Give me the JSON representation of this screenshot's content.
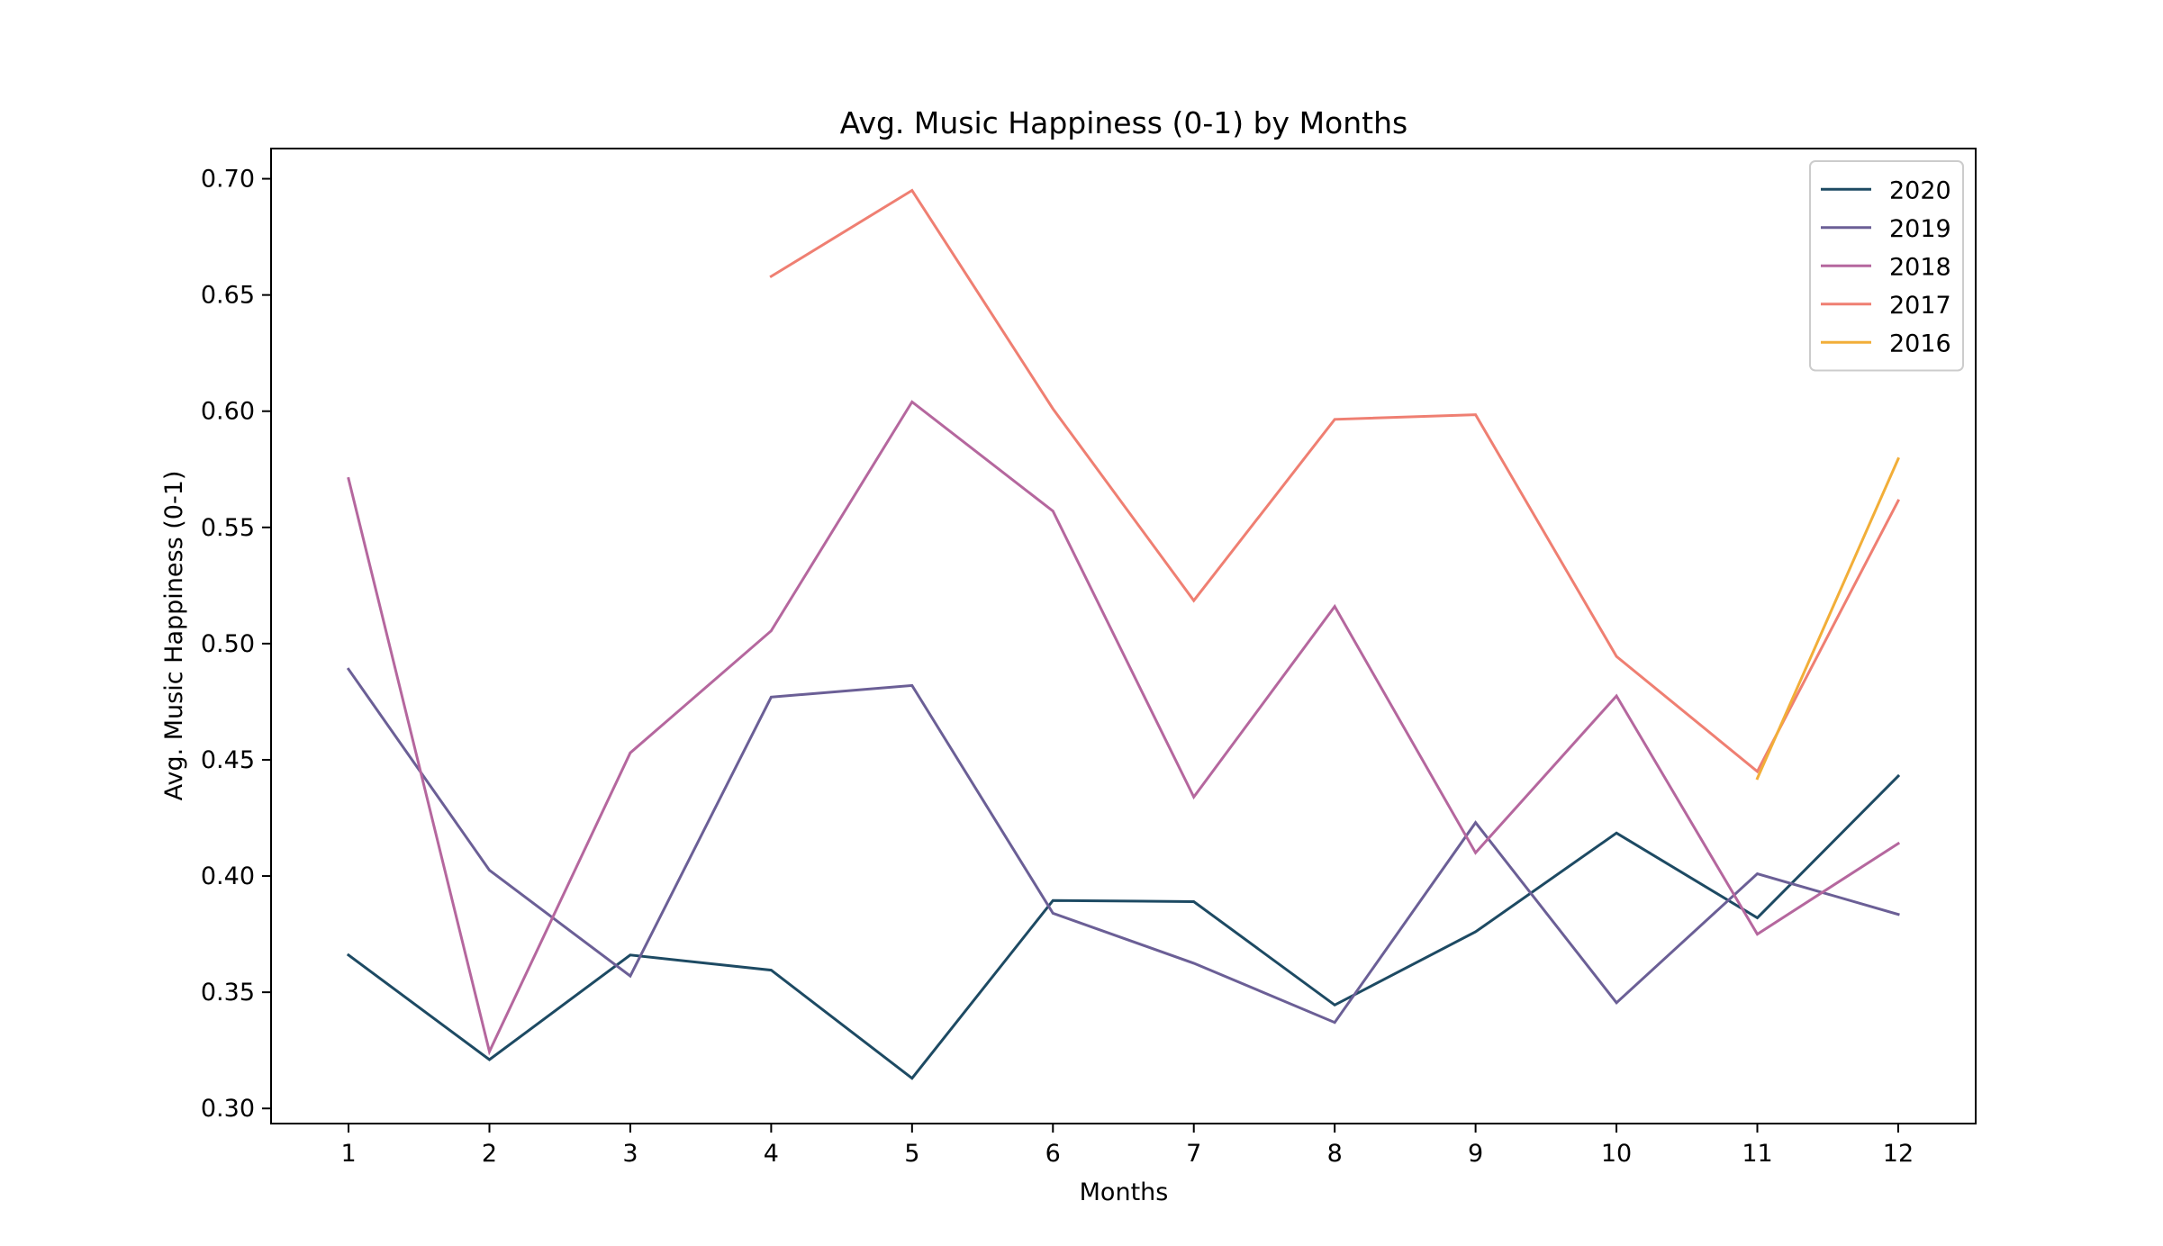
{
  "chart_data": {
    "type": "line",
    "title": "Avg. Music Happiness (0-1) by Months",
    "xlabel": "Months",
    "ylabel": "Avg. Music Happiness (0-1)",
    "x": [
      1,
      2,
      3,
      4,
      5,
      6,
      7,
      8,
      9,
      10,
      11,
      12
    ],
    "x_ticks": [
      "1",
      "2",
      "3",
      "4",
      "5",
      "6",
      "7",
      "8",
      "9",
      "10",
      "11",
      "12"
    ],
    "xlim": [
      0.45,
      12.55
    ],
    "ylim": [
      0.2935,
      0.713
    ],
    "y_ticks": [
      "0.30",
      "0.35",
      "0.40",
      "0.45",
      "0.50",
      "0.55",
      "0.60",
      "0.65",
      "0.70"
    ],
    "grid": false,
    "legend_position": "top-right",
    "series": [
      {
        "name": "2020",
        "color": "#1d4a63",
        "values": [
          0.366,
          0.321,
          0.366,
          0.3595,
          0.313,
          0.3895,
          0.389,
          0.3445,
          0.376,
          0.4185,
          0.382,
          0.443
        ]
      },
      {
        "name": "2019",
        "color": "#6b5f96",
        "values": [
          0.489,
          0.4025,
          0.357,
          0.477,
          0.482,
          0.384,
          0.3625,
          0.337,
          0.423,
          0.3455,
          0.401,
          0.3835
        ]
      },
      {
        "name": "2018",
        "color": "#b5679e",
        "values": [
          0.571,
          0.3245,
          0.453,
          0.5055,
          0.604,
          0.557,
          0.434,
          0.516,
          0.41,
          0.4775,
          0.375,
          0.414
        ]
      },
      {
        "name": "2017",
        "color": "#ef7f72",
        "values": [
          null,
          null,
          null,
          0.658,
          0.695,
          0.601,
          0.5185,
          0.5965,
          0.5985,
          0.4945,
          0.445,
          0.5615
        ]
      },
      {
        "name": "2016",
        "color": "#f2ae38",
        "values": [
          null,
          null,
          null,
          null,
          null,
          null,
          null,
          null,
          null,
          null,
          0.442,
          0.5795
        ]
      }
    ]
  }
}
